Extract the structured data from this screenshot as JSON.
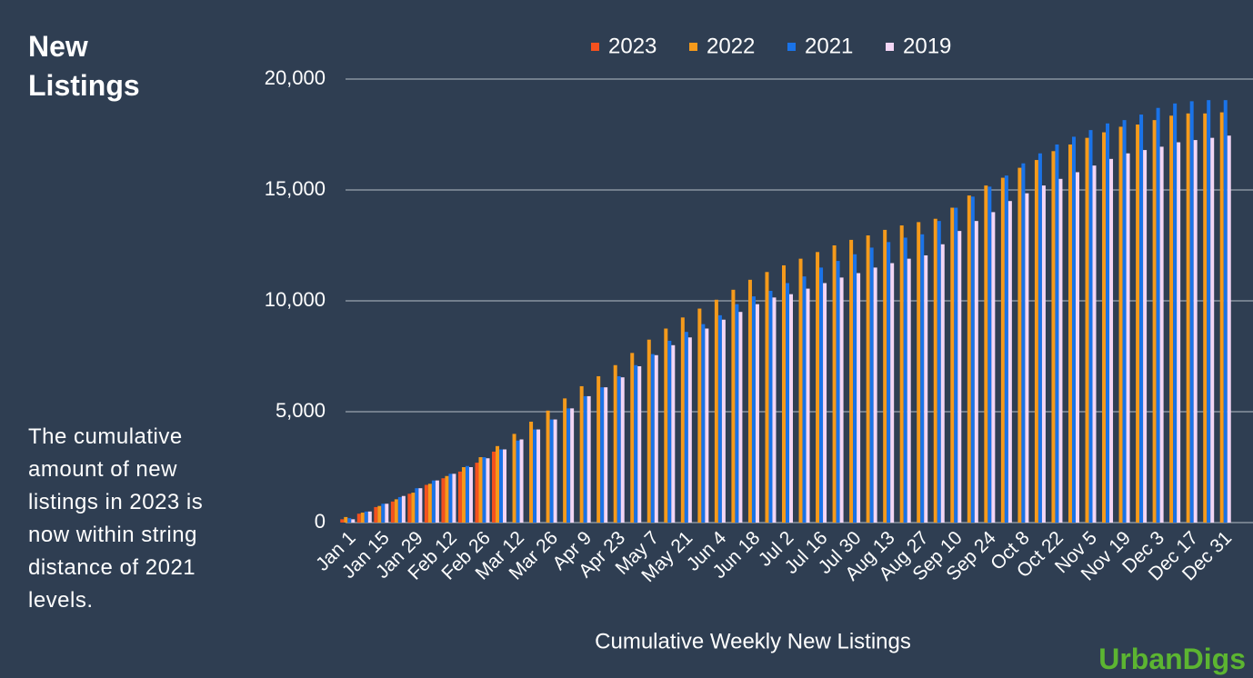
{
  "chart_data": {
    "type": "bar",
    "title": "New Listings",
    "annotation": "The cumulative amount of new listings in 2023 is now within string distance of 2021 levels.",
    "x_label": "Cumulative Weekly New Listings",
    "source": "UrbanDigs",
    "categories": [
      "Jan 1",
      null,
      "Jan 15",
      null,
      "Jan 29",
      null,
      "Feb 12",
      null,
      "Feb 26",
      null,
      "Mar 12",
      null,
      "Mar 26",
      null,
      "Apr 9",
      null,
      "Apr 23",
      null,
      "May 7",
      null,
      "May 21",
      null,
      "Jun 4",
      null,
      "Jun 18",
      null,
      "Jul 2",
      null,
      "Jul 16",
      null,
      "Jul 30",
      null,
      "Aug 13",
      null,
      "Aug 27",
      null,
      "Sep 10",
      null,
      "Sep 24",
      null,
      "Oct 8",
      null,
      "Oct 22",
      null,
      "Nov 5",
      null,
      "Nov 19",
      null,
      "Dec 3",
      null,
      "Dec 17",
      null,
      "Dec 31"
    ],
    "series": [
      {
        "name": "2023",
        "color": "#f4511e",
        "values": [
          150,
          400,
          700,
          950,
          1300,
          1700,
          2000,
          2300,
          2700,
          3200,
          null,
          null,
          null,
          null,
          null,
          null,
          null,
          null,
          null,
          null,
          null,
          null,
          null,
          null,
          null,
          null,
          null,
          null,
          null,
          null,
          null,
          null,
          null,
          null,
          null,
          null,
          null,
          null,
          null,
          null,
          null,
          null,
          null,
          null,
          null,
          null,
          null,
          null,
          null,
          null,
          null,
          null,
          null
        ]
      },
      {
        "name": "2022",
        "color": "#f59a1b",
        "values": [
          250,
          450,
          750,
          1050,
          1350,
          1750,
          2100,
          2500,
          2950,
          3450,
          4000,
          4550,
          5050,
          5600,
          6150,
          6600,
          7100,
          7650,
          8250,
          8750,
          9250,
          9650,
          10050,
          10500,
          10950,
          11300,
          11600,
          11900,
          12200,
          12500,
          12750,
          12950,
          13200,
          13400,
          13550,
          13700,
          14200,
          14750,
          15200,
          15550,
          16000,
          16350,
          16750,
          17050,
          17350,
          17600,
          17850,
          17950,
          18150,
          18350,
          18450,
          18450,
          18500
        ]
      },
      {
        "name": "2021",
        "color": "#1a73e8",
        "values": [
          200,
          500,
          850,
          1150,
          1550,
          1900,
          2200,
          2550,
          2950,
          3300,
          3700,
          4200,
          4650,
          5150,
          5700,
          6100,
          6600,
          7100,
          7600,
          8200,
          8600,
          8950,
          9350,
          9850,
          10200,
          10450,
          10800,
          11100,
          11500,
          11800,
          12100,
          12400,
          12650,
          12850,
          13000,
          13600,
          14200,
          14700,
          15150,
          15650,
          16200,
          16650,
          17050,
          17400,
          17700,
          18000,
          18150,
          18400,
          18700,
          18900,
          19000,
          19050,
          19050
        ]
      },
      {
        "name": "2019",
        "color": "#f3d6f5",
        "values": [
          150,
          500,
          850,
          1200,
          1550,
          1900,
          2200,
          2500,
          2900,
          3300,
          3750,
          4200,
          4650,
          5150,
          5700,
          6100,
          6550,
          7050,
          7550,
          8000,
          8350,
          8750,
          9150,
          9500,
          9850,
          10150,
          10300,
          10550,
          10800,
          11050,
          11250,
          11500,
          11700,
          11900,
          12050,
          12550,
          13150,
          13600,
          14000,
          14500,
          14850,
          15200,
          15500,
          15800,
          16100,
          16400,
          16650,
          16800,
          16950,
          17150,
          17250,
          17350,
          17450
        ]
      }
    ],
    "ylim": [
      0,
      20000
    ],
    "yticks": [
      0,
      {
        "value": 5000,
        "label": "5,000"
      },
      {
        "value": 10000,
        "label": "10,000"
      },
      {
        "value": 15000,
        "label": "15,000"
      },
      {
        "value": 20000,
        "label": "20,000"
      }
    ],
    "grid": true
  }
}
